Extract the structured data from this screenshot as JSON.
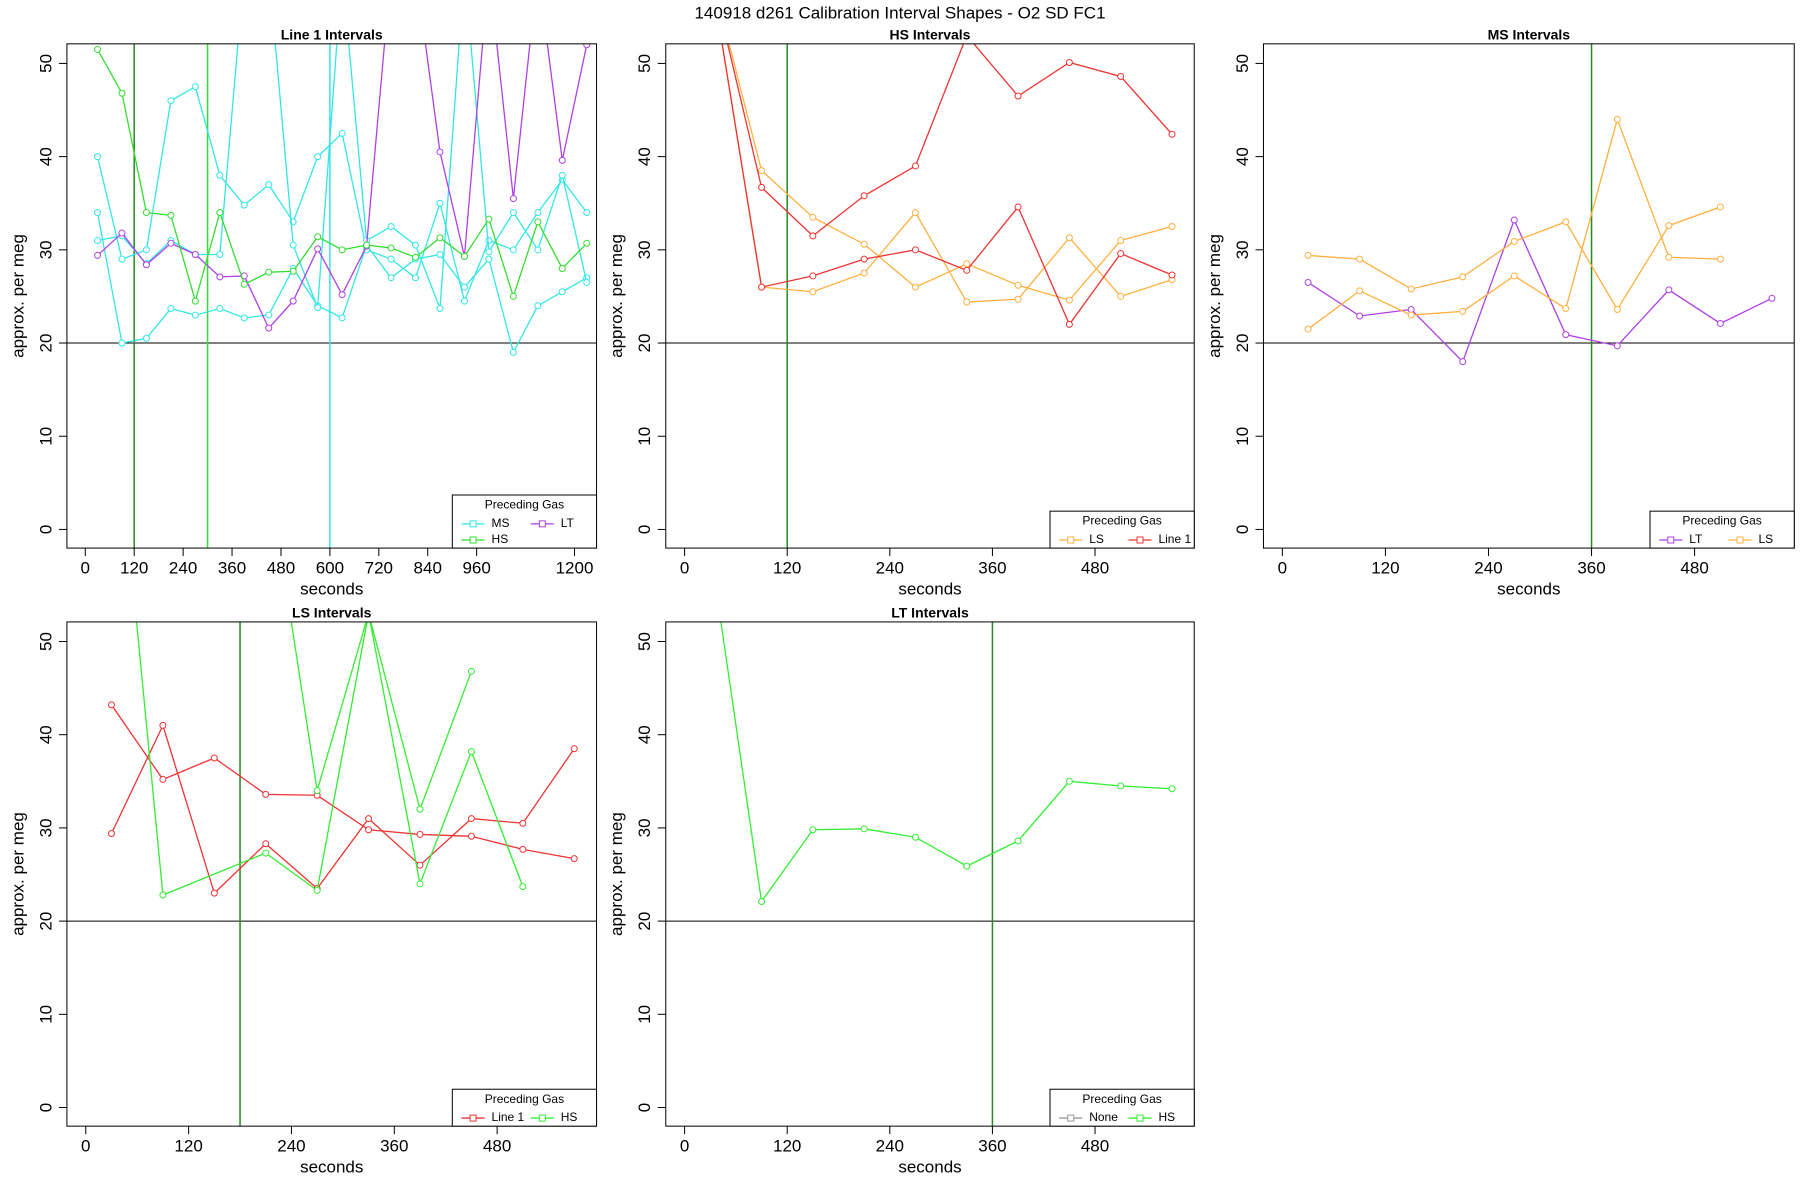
{
  "title": "140918   d261   Calibration Interval Shapes - O2 SD FC1",
  "chart_data": [
    {
      "type": "line",
      "title": "Line 1 Intervals",
      "xlabel": "seconds",
      "ylabel": "approx. per meg",
      "xlim": [
        -45,
        1254
      ],
      "ylim": [
        -2,
        52.1
      ],
      "xticks": [
        0,
        120,
        240,
        360,
        480,
        600,
        720,
        840,
        960,
        1200
      ],
      "yticks": [
        0,
        10,
        20,
        30,
        40,
        50
      ],
      "hline": 20,
      "vlines": [
        {
          "x": 120,
          "color": "#228b22"
        },
        {
          "x": 300,
          "color": "#33dd33"
        },
        {
          "x": 600,
          "color": "#33e6e6"
        }
      ],
      "legend_title": "Preceding Gas",
      "legend": "bottomright",
      "series": [
        {
          "name": "MS",
          "color": "#33e6e6",
          "lines": [
            {
              "x": [
                30,
                90,
                150,
                210,
                270,
                330,
                390,
                450,
                510,
                570,
                630,
                690,
                750,
                810,
                870,
                930,
                990,
                1050,
                1110,
                1170,
                1230
              ],
              "values": [
                40,
                29,
                30,
                46,
                47.5,
                38,
                34.8,
                37,
                33,
                40,
                42.5,
                30,
                29,
                27,
                35,
                24.5,
                31,
                30,
                34,
                37.5,
                34
              ]
            },
            {
              "x": [
                30,
                90,
                150,
                210,
                270,
                330,
                390,
                450,
                510,
                570,
                630,
                690,
                750,
                810,
                870,
                930,
                990,
                1050,
                1110,
                1170,
                1230
              ],
              "values": [
                34,
                20,
                20.5,
                23.7,
                23,
                23.7,
                22.7,
                23,
                28,
                24,
                22.7,
                30.5,
                27,
                29,
                29.5,
                26,
                29,
                19,
                24,
                25.5,
                27
              ]
            },
            {
              "x": [
                30,
                90,
                150,
                210,
                270,
                330,
                390,
                450,
                510,
                570,
                630,
                690,
                750,
                810,
                870,
                930,
                990,
                1050,
                1110,
                1170,
                1230
              ],
              "values": [
                31,
                31.5,
                28.5,
                31,
                29.5,
                29.5,
                60,
                60,
                30.5,
                23.8,
                60,
                31,
                32.5,
                30.5,
                23.7,
                60,
                29.8,
                34,
                30,
                38,
                26.5
              ]
            }
          ]
        },
        {
          "name": "LT",
          "color": "#b040e6",
          "lines": [
            {
              "x": [
                30,
                90,
                150,
                210,
                270,
                330,
                390,
                450,
                510,
                570,
                630,
                690,
                750,
                810,
                870,
                930,
                990,
                1050,
                1110,
                1170,
                1230
              ],
              "values": [
                29.4,
                31.8,
                28.4,
                30.7,
                29.5,
                27.1,
                27.2,
                21.6,
                24.5,
                30.1,
                25.2,
                30.4,
                60,
                60,
                40.5,
                29.3,
                60,
                35.5,
                60,
                39.6,
                52
              ]
            }
          ]
        },
        {
          "name": "HS",
          "color": "#33dd33",
          "lines": [
            {
              "x": [
                30,
                90,
                150,
                210,
                270,
                330,
                390,
                450,
                510,
                570,
                630,
                690,
                750,
                810,
                870,
                930,
                990,
                1050,
                1110,
                1170,
                1230
              ],
              "values": [
                51.5,
                46.8,
                34,
                33.7,
                24.5,
                34,
                26.3,
                27.6,
                27.7,
                31.4,
                30,
                30.5,
                30.2,
                29.2,
                31.3,
                29.3,
                33.3,
                25,
                33,
                28,
                30.7
              ]
            }
          ]
        }
      ]
    },
    {
      "type": "line",
      "title": "HS Intervals",
      "xlabel": "seconds",
      "ylabel": "approx. per meg",
      "xlim": [
        -22,
        596
      ],
      "ylim": [
        -2,
        52.1
      ],
      "xticks": [
        0,
        120,
        240,
        360,
        480
      ],
      "yticks": [
        0,
        10,
        20,
        30,
        40,
        50
      ],
      "hline": 20,
      "vlines": [
        {
          "x": 120,
          "color": "#228b22"
        }
      ],
      "legend_title": "Preceding Gas",
      "legend": "bottomright",
      "series": [
        {
          "name": "LS",
          "color": "#ffb040",
          "lines": [
            {
              "x": [
                30,
                90,
                150,
                210,
                270,
                330,
                390,
                450,
                510,
                570
              ],
              "values": [
                60,
                38.5,
                33.5,
                30.6,
                26,
                28.5,
                26.2,
                24.6,
                31,
                32.5
              ]
            },
            {
              "x": [
                30,
                90,
                150,
                210,
                270,
                330,
                390,
                450,
                510,
                570
              ],
              "values": [
                60,
                26,
                25.5,
                27.5,
                34,
                24.4,
                24.7,
                31.3,
                25,
                26.8
              ]
            }
          ]
        },
        {
          "name": "Line 1",
          "color": "#ee3333",
          "lines": [
            {
              "x": [
                30,
                90,
                150,
                210,
                270,
                330,
                390,
                450,
                510,
                570
              ],
              "values": [
                60,
                36.7,
                31.5,
                35.8,
                39,
                53,
                46.5,
                50.1,
                48.6,
                42.4
              ]
            },
            {
              "x": [
                30,
                90,
                150,
                210,
                270,
                330,
                390,
                450,
                510,
                570
              ],
              "values": [
                60,
                26,
                27.2,
                29,
                30,
                27.8,
                34.6,
                22,
                29.6,
                27.3
              ]
            }
          ]
        }
      ]
    },
    {
      "type": "line",
      "title": "MS Intervals",
      "xlabel": "seconds",
      "ylabel": "approx. per meg",
      "xlim": [
        -22,
        596
      ],
      "ylim": [
        -2,
        52.1
      ],
      "xticks": [
        0,
        120,
        240,
        360,
        480
      ],
      "yticks": [
        0,
        10,
        20,
        30,
        40,
        50
      ],
      "hline": 20,
      "vlines": [
        {
          "x": 360,
          "color": "#228b22"
        }
      ],
      "legend_title": "Preceding Gas",
      "legend": "bottomright",
      "series": [
        {
          "name": "LT",
          "color": "#b040e6",
          "lines": [
            {
              "x": [
                30,
                90,
                150,
                210,
                270,
                330,
                390,
                450,
                510,
                570
              ],
              "values": [
                26.5,
                22.9,
                23.6,
                18,
                33.2,
                20.9,
                19.7,
                25.7,
                22.1,
                24.8
              ]
            }
          ]
        },
        {
          "name": "LS",
          "color": "#ffb040",
          "lines": [
            {
              "x": [
                30,
                90,
                150,
                210,
                270,
                330,
                390,
                450,
                510
              ],
              "values": [
                29.4,
                29,
                25.8,
                27.1,
                30.9,
                33,
                23.6,
                32.6,
                34.6
              ]
            },
            {
              "x": [
                30,
                90,
                150,
                210,
                270,
                330,
                390,
                450,
                510
              ],
              "values": [
                21.5,
                25.6,
                23,
                23.4,
                27.2,
                23.7,
                44,
                29.2,
                29
              ]
            }
          ]
        }
      ]
    },
    {
      "type": "line",
      "title": "LS Intervals",
      "xlabel": "seconds",
      "ylabel": "approx. per meg",
      "xlim": [
        -22,
        596
      ],
      "ylim": [
        -2,
        52.1
      ],
      "xticks": [
        0,
        120,
        240,
        360,
        480
      ],
      "yticks": [
        0,
        10,
        20,
        30,
        40,
        50
      ],
      "hline": 20,
      "vlines": [
        {
          "x": 180,
          "color": "#228b22"
        }
      ],
      "legend_title": "Preceding Gas",
      "legend": "bottomright",
      "series": [
        {
          "name": "Line 1",
          "color": "#ee3333",
          "lines": [
            {
              "x": [
                30,
                90,
                150,
                210,
                270,
                330,
                390,
                450,
                510,
                570
              ],
              "values": [
                29.4,
                41,
                23,
                28.3,
                23.5,
                31,
                26,
                31,
                30.5,
                38.5
              ]
            },
            {
              "x": [
                30,
                90,
                150,
                210,
                270,
                330,
                390,
                450,
                510,
                570
              ],
              "values": [
                43.2,
                35.2,
                37.5,
                33.6,
                33.5,
                29.8,
                29.3,
                29.1,
                27.7,
                26.7
              ]
            }
          ]
        },
        {
          "name": "HS",
          "color": "#33ee33",
          "lines": [
            {
              "x": [
                30,
                90,
                210,
                270,
                330,
                390,
                450,
                510
              ],
              "values": [
                80,
                22.8,
                27.3,
                23.3,
                53,
                24,
                38.2,
                23.7
              ]
            },
            {
              "x": [
                210,
                270,
                330,
                390,
                450
              ],
              "values": [
                70,
                34,
                53,
                32,
                46.8
              ]
            }
          ]
        }
      ]
    },
    {
      "type": "line",
      "title": "LT Intervals",
      "xlabel": "seconds",
      "ylabel": "approx. per meg",
      "xlim": [
        -22,
        596
      ],
      "ylim": [
        -2,
        52.1
      ],
      "xticks": [
        0,
        120,
        240,
        360,
        480
      ],
      "yticks": [
        0,
        10,
        20,
        30,
        40,
        50
      ],
      "hline": 20,
      "vlines": [
        {
          "x": 360,
          "color": "#228b22"
        }
      ],
      "legend_title": "Preceding Gas",
      "legend": "bottomright",
      "series": [
        {
          "name": "None",
          "color": "#999999",
          "lines": []
        },
        {
          "name": "HS",
          "color": "#33ee33",
          "lines": [
            {
              "x": [
                30,
                90,
                150,
                210,
                270,
                330,
                390,
                450,
                510,
                570
              ],
              "values": [
                60,
                22.1,
                29.8,
                29.9,
                29,
                25.9,
                28.6,
                35,
                34.5,
                34.2
              ]
            }
          ]
        }
      ]
    }
  ]
}
